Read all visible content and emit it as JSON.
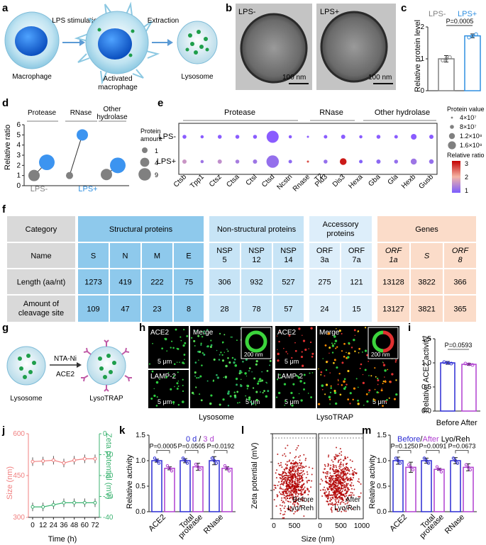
{
  "panel_labels": [
    "a",
    "b",
    "c",
    "d",
    "e",
    "f",
    "g",
    "h",
    "i",
    "j",
    "k",
    "l",
    "m"
  ],
  "panel_a": {
    "stimulation": "LPS stimulation",
    "extraction": "Extraction",
    "macrophage": "Macrophage",
    "activated": [
      "Activated",
      "macrophage"
    ],
    "lysosome": "Lysosome"
  },
  "panel_b": {
    "left_label": "LPS-",
    "right_label": "LPS+",
    "scale": "100 nm"
  },
  "panel_g": {
    "reagent1": "NTA-Ni",
    "reagent2": "ACE2",
    "left": "Lysosome",
    "right": "LysoTRAP"
  },
  "panel_h": {
    "ace2": "ACE2",
    "merge": "Merge",
    "lamp2": "LAMP-2",
    "scale_large": "5 μm",
    "scale_inset": "200 nm",
    "cap_left": "Lysosome",
    "cap_right": "LysoTRAP"
  },
  "table_f": {
    "group_headers": [
      "Category",
      "Structural proteins",
      "Non-structural proteins",
      "Accessory proteins",
      "Genes"
    ],
    "row_labels": [
      "Name",
      "Length (aa/nt)",
      "Amount of cleavage site"
    ],
    "names": [
      "S",
      "N",
      "M",
      "E",
      "NSP 5",
      "NSP 12",
      "NSP 14",
      "ORF 3a",
      "ORF 7a",
      "ORF 1a",
      "S",
      "ORF 8"
    ],
    "lengths": [
      "1273",
      "419",
      "222",
      "75",
      "306",
      "932",
      "527",
      "275",
      "121",
      "13128",
      "3822",
      "366"
    ],
    "cleavage": [
      "109",
      "47",
      "23",
      "8",
      "28",
      "78",
      "57",
      "24",
      "15",
      "13127",
      "3821",
      "365"
    ],
    "colors": {
      "gray": "#d9d9d9",
      "blue": "#8ec9ec",
      "light_blue": "#c7e4f6",
      "pale_blue": "#ddeefa",
      "peach": "#fbdcc9"
    }
  },
  "chart_data": [
    {
      "panel": "c",
      "type": "bar",
      "categories": [
        "LPS-",
        "LPS+"
      ],
      "values": [
        1.0,
        1.72
      ],
      "errors": [
        0.1,
        0.06
      ],
      "ylabel": "Relative protein level",
      "ylim": [
        0,
        2
      ],
      "yticks": [
        "0",
        "1",
        "2"
      ],
      "pvalue": "P=0.0005",
      "colors": {
        "LPS-": "#808080",
        "LPS+": "#2f8fe0"
      }
    },
    {
      "panel": "d",
      "type": "scatter",
      "groups": [
        "Protease",
        "RNase",
        "Other hydrolase"
      ],
      "group_label_lines": [
        [
          "Protease"
        ],
        [
          "RNase"
        ],
        [
          "Other",
          "hydrolase"
        ]
      ],
      "series": [
        {
          "name": "LPS-",
          "values": [
            1.0,
            1.0,
            1.1
          ],
          "amounts": [
            4,
            1,
            4
          ]
        },
        {
          "name": "LPS+",
          "values": [
            2.3,
            5.0,
            2.0
          ],
          "amounts": [
            9,
            4,
            9
          ]
        }
      ],
      "ylabel": "Relative ratio",
      "ylim": [
        0,
        6
      ],
      "yticks": [
        "0",
        "1",
        "2",
        "3",
        "4",
        "5",
        "6"
      ],
      "xlabels": [
        "LPS-",
        "LPS+"
      ],
      "legend_title": [
        "Protein",
        "amount"
      ],
      "legend_items": [
        "1",
        "4",
        "9"
      ]
    },
    {
      "panel": "e",
      "type": "scatter",
      "groups": [
        "Protease",
        "RNase",
        "Other hydrolase"
      ],
      "categories": [
        "Ctsb",
        "Tpp1",
        "Ctsz",
        "Ctsa",
        "Ctsl",
        "Ctsd",
        "Ncstn",
        "Rnase T2",
        "Pld3",
        "Dis3",
        "Hexa",
        "Gba",
        "Gla",
        "Hexb",
        "Gusb"
      ],
      "rows": [
        "LPS-",
        "LPS+"
      ],
      "ratio_lps_plus": [
        1.9,
        1.4,
        1.8,
        1.5,
        1.4,
        1.3,
        1.2,
        3.2,
        1.3,
        3.6,
        1.1,
        1.2,
        1.3,
        1.4,
        1.3
      ],
      "size_lps_minus": [
        0.55,
        0.45,
        0.55,
        0.55,
        0.55,
        1.7,
        0.45,
        0.15,
        0.5,
        0.6,
        0.45,
        0.55,
        0.5,
        0.8,
        0.6
      ],
      "size_lps_plus": [
        0.6,
        0.45,
        0.6,
        0.55,
        0.6,
        1.75,
        0.5,
        0.3,
        0.55,
        0.95,
        0.5,
        0.6,
        0.55,
        0.85,
        0.65
      ],
      "size_legend_title": "Protein value",
      "size_legend": [
        "4×10⁷",
        "8×10⁷",
        "1.2×10⁸",
        "1.6×10⁸"
      ],
      "color_legend_title": "Relative ratio",
      "color_ticks": [
        "3",
        "2",
        "1"
      ],
      "rnase_label_lines": [
        "Rnase",
        "T2"
      ]
    },
    {
      "panel": "i",
      "type": "bar",
      "categories": [
        "Before",
        "After"
      ],
      "values": [
        1.0,
        0.97
      ],
      "errors": [
        0.03,
        0.02
      ],
      "ylabel": "Relative ACE2 activity",
      "ylim": [
        0,
        1.5
      ],
      "yticks": [
        "0.0",
        "0.5",
        "1.0",
        "1.5"
      ],
      "pvalue": "P=0.0593",
      "colors": {
        "Before": "#2b2bd4",
        "After": "#b03fd0"
      }
    },
    {
      "panel": "j",
      "type": "line",
      "x": [
        0,
        12,
        24,
        36,
        48,
        60,
        72
      ],
      "series": [
        {
          "name": "Size (nm)",
          "values": [
            500,
            502,
            505,
            495,
            505,
            510,
            510
          ],
          "color": "#f08080",
          "axis": "left"
        },
        {
          "name": "Zeta potential (mV)",
          "values": [
            -35,
            -35,
            -34,
            -33,
            -33,
            -33,
            -33
          ],
          "color": "#3cb371",
          "axis": "right"
        }
      ],
      "xlabel": "Time (h)",
      "ylabel_left": "Size (nm)",
      "ylabel_right": "Zeta potential (mV)",
      "ylim_left": [
        300,
        600
      ],
      "ylim_right": [
        -40,
        0
      ],
      "xticks": [
        "0",
        "12",
        "24",
        "36",
        "48",
        "60",
        "72"
      ],
      "yticks_left": [
        "300",
        "450",
        "600"
      ],
      "yticks_right": [
        "0",
        "-10",
        "-20",
        "-30",
        "-40"
      ]
    },
    {
      "panel": "k",
      "type": "bar",
      "categories": [
        "ACE2",
        "Total protease",
        "RNase"
      ],
      "category_label_lines": [
        [
          "ACE2"
        ],
        [
          "Total",
          "protease"
        ],
        [
          "RNase"
        ]
      ],
      "series": [
        {
          "name": "0 d",
          "values": [
            1.0,
            1.0,
            1.0
          ],
          "errors": [
            0.03,
            0.04,
            0.08
          ],
          "color": "#2b2bd4"
        },
        {
          "name": "3 d",
          "values": [
            0.85,
            0.88,
            0.85
          ],
          "errors": [
            0.03,
            0.07,
            0.03
          ],
          "color": "#b03fd0"
        }
      ],
      "pvalues": [
        "P=0.0005",
        "P=0.0505",
        "P=0.0192"
      ],
      "legend_parts": [
        "0 d",
        "/ ",
        "3 d"
      ],
      "ylabel": "Relative activity",
      "ylim": [
        0,
        1.5
      ],
      "yticks": [
        "0.0",
        "0.5",
        "1.0",
        "1.5"
      ]
    },
    {
      "panel": "l",
      "type": "scatter",
      "subplots": [
        "Before Lyo/Reh",
        "After Lyo/Reh"
      ],
      "subplot_label_lines": [
        [
          "Before",
          "Lyo/Reh"
        ],
        [
          "After",
          "Lyo/Reh"
        ]
      ],
      "ylabel": "Zeta potential (mV)",
      "xlabel": "Size (nm)",
      "ylim": [
        -60,
        0
      ],
      "xlim": [
        0,
        1000
      ],
      "yticks": [
        "-60",
        "-40",
        "-20",
        "0"
      ],
      "xticks": [
        "0",
        "500",
        "1000"
      ],
      "center_size_nm": 450,
      "center_zeta_mv": -35,
      "n_points": 600
    },
    {
      "panel": "m",
      "type": "bar",
      "categories": [
        "ACE2",
        "Total protease",
        "RNase"
      ],
      "category_label_lines": [
        [
          "ACE2"
        ],
        [
          "Total",
          "protease"
        ],
        [
          "RNase"
        ]
      ],
      "series": [
        {
          "name": "Before",
          "values": [
            1.0,
            1.0,
            1.0
          ],
          "errors": [
            0.07,
            0.05,
            0.06
          ],
          "color": "#2b2bd4"
        },
        {
          "name": "After",
          "values": [
            0.87,
            0.83,
            0.87
          ],
          "errors": [
            0.1,
            0.02,
            0.07
          ],
          "color": "#b03fd0"
        }
      ],
      "pvalues": [
        "P=0.1250",
        "P=0.0091",
        "P=0.0673"
      ],
      "legend_parts": [
        "Before",
        "/",
        "After",
        " Lyo/Reh"
      ],
      "ylabel": "Relative activity",
      "ylim": [
        0,
        1.5
      ],
      "yticks": [
        "0.0",
        "0.5",
        "1.0",
        "1.5"
      ]
    }
  ]
}
